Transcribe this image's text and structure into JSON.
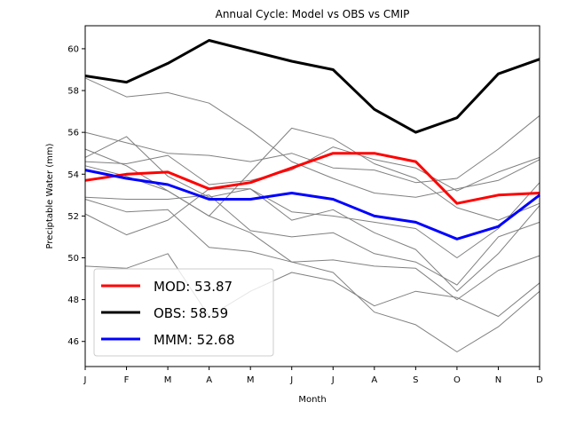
{
  "chart_data": {
    "type": "line",
    "title": "Annual Cycle: Model vs OBS vs CMIP",
    "xlabel": "Month",
    "ylabel": "Preciptable Water (mm)",
    "categories": [
      "J",
      "F",
      "M",
      "A",
      "M",
      "J",
      "J",
      "A",
      "S",
      "O",
      "N",
      "D"
    ],
    "ylim": [
      44.8,
      61.1
    ],
    "yticks": [
      46,
      48,
      50,
      52,
      54,
      56,
      58,
      60
    ],
    "grid": false,
    "legend_position": "lower-left",
    "highlighted_series": [
      {
        "name": "MOD",
        "label": "MOD: 53.87",
        "color": "#ff0000",
        "values": [
          53.7,
          54.0,
          54.1,
          53.3,
          53.6,
          54.3,
          55.0,
          55.0,
          54.6,
          52.6,
          53.0,
          53.1
        ]
      },
      {
        "name": "OBS",
        "label": "OBS: 58.59",
        "color": "#000000",
        "values": [
          58.7,
          58.4,
          59.3,
          60.4,
          59.9,
          59.4,
          59.0,
          57.1,
          56.0,
          56.7,
          58.8,
          59.5
        ]
      },
      {
        "name": "MMM",
        "label": "MMM: 52.68",
        "color": "#0000ff",
        "values": [
          54.2,
          53.8,
          53.5,
          52.8,
          52.8,
          53.1,
          52.8,
          52.0,
          51.7,
          50.9,
          51.5,
          53.0
        ]
      }
    ],
    "model_color": "#808080",
    "model_series": [
      {
        "values": [
          58.6,
          57.7,
          57.9,
          57.4,
          56.1,
          54.6,
          53.8,
          53.1,
          52.9,
          53.3,
          53.7,
          54.7
        ]
      },
      {
        "values": [
          56.0,
          55.5,
          55.0,
          54.9,
          54.6,
          55.0,
          54.3,
          54.2,
          53.6,
          53.8,
          55.2,
          56.8
        ]
      },
      {
        "values": [
          55.2,
          54.4,
          53.2,
          52.0,
          54.1,
          56.2,
          55.7,
          54.5,
          53.8,
          52.4,
          51.8,
          52.6
        ]
      },
      {
        "values": [
          54.6,
          54.5,
          54.9,
          53.5,
          53.7,
          54.2,
          55.3,
          54.7,
          54.3,
          53.2,
          54.1,
          54.8
        ]
      },
      {
        "values": [
          54.8,
          55.8,
          53.9,
          52.9,
          53.3,
          52.2,
          52.0,
          51.7,
          51.4,
          50.0,
          51.4,
          53.6
        ]
      },
      {
        "values": [
          52.9,
          52.8,
          52.8,
          53.0,
          51.3,
          51.0,
          51.2,
          50.2,
          49.8,
          48.7,
          51.0,
          51.7
        ]
      },
      {
        "values": [
          52.1,
          51.1,
          51.8,
          53.3,
          53.3,
          51.8,
          52.3,
          51.2,
          50.4,
          48.4,
          50.2,
          52.5
        ]
      },
      {
        "values": [
          52.8,
          52.2,
          52.3,
          50.5,
          50.3,
          49.8,
          49.9,
          49.6,
          49.5,
          48.0,
          49.4,
          50.1
        ]
      },
      {
        "values": [
          49.6,
          49.5,
          50.2,
          47.2,
          48.4,
          49.3,
          48.9,
          47.7,
          48.4,
          48.1,
          47.2,
          48.8
        ]
      },
      {
        "values": [
          54.4,
          53.9,
          53.2,
          52.0,
          51.2,
          49.8,
          49.3,
          47.4,
          46.8,
          45.5,
          46.7,
          48.4
        ]
      }
    ]
  }
}
